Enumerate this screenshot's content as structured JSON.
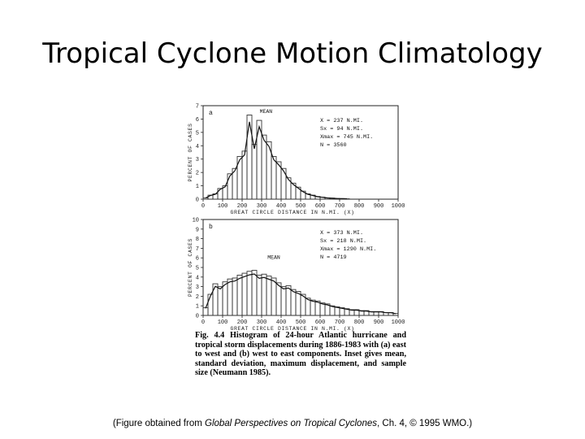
{
  "slide": {
    "title": "Tropical Cyclone Motion Climatology"
  },
  "figure": {
    "caption_label": "Fig. 4.4",
    "caption_text": "Histogram of 24-hour Atlantic hurricane and tropical storm displacements during 1886-1983 with (a) east to west and (b) west to east components. Inset gives mean, standard deviation, maximum displacement, and sample size (Neumann 1985).",
    "panels": [
      {
        "label": "a",
        "curve_label": "MEAN",
        "ylabel": "PERCENT OF CASES",
        "xlabel": "GREAT CIRCLE DISTANCE IN N.MI. (X)",
        "y_ticks": [
          "0",
          "1",
          "2",
          "3",
          "4",
          "5",
          "6",
          "7"
        ],
        "x_ticks": [
          "0",
          "100",
          "200",
          "300",
          "400",
          "500",
          "600",
          "700",
          "800",
          "900",
          "1000"
        ],
        "stats": [
          "X = 237 N.MI.",
          "Sx = 94 N.MI.",
          "Xmax = 745 N.MI.",
          "N = 3560"
        ]
      },
      {
        "label": "b",
        "curve_label": "MEAN",
        "ylabel": "PERCENT OF CASES",
        "xlabel": "GREAT CIRCLE DISTANCE IN N.MI. (X)",
        "y_ticks": [
          "0",
          "1",
          "2",
          "3",
          "4",
          "5",
          "6",
          "7",
          "8",
          "9",
          "10"
        ],
        "x_ticks": [
          "0",
          "100",
          "200",
          "300",
          "400",
          "500",
          "600",
          "700",
          "800",
          "900",
          "1000"
        ],
        "stats": [
          "X = 373 N.MI.",
          "Sx = 218 N.MI.",
          "Xmax = 1290 N.MI.",
          "N = 4719"
        ]
      }
    ]
  },
  "chart_data": [
    {
      "type": "bar",
      "title": "",
      "xlabel": "GREAT CIRCLE DISTANCE IN N.MI. (X)",
      "ylabel": "PERCENT OF CASES",
      "xlim": [
        0,
        1000
      ],
      "ylim": [
        0,
        7
      ],
      "bin_width": 25,
      "x": [
        0,
        25,
        50,
        75,
        100,
        125,
        150,
        175,
        200,
        225,
        250,
        275,
        300,
        325,
        350,
        375,
        400,
        425,
        450,
        475,
        500,
        525,
        550,
        575,
        600,
        625,
        650,
        675,
        700,
        725
      ],
      "values": [
        0.1,
        0.3,
        0.4,
        0.8,
        1.0,
        1.9,
        2.3,
        3.2,
        3.6,
        6.3,
        4.1,
        5.9,
        4.8,
        4.3,
        3.2,
        2.8,
        2.3,
        1.6,
        1.2,
        0.9,
        0.6,
        0.4,
        0.3,
        0.2,
        0.15,
        0.1,
        0.08,
        0.05,
        0.04,
        0.03
      ]
    },
    {
      "type": "bar",
      "title": "",
      "xlabel": "GREAT CIRCLE DISTANCE IN N.MI. (X)",
      "ylabel": "PERCENT OF CASES",
      "xlim": [
        0,
        1000
      ],
      "ylim": [
        0,
        10
      ],
      "bin_width": 25,
      "x": [
        0,
        25,
        50,
        75,
        100,
        125,
        150,
        175,
        200,
        225,
        250,
        275,
        300,
        325,
        350,
        375,
        400,
        425,
        450,
        475,
        500,
        525,
        550,
        575,
        600,
        625,
        650,
        675,
        700,
        725,
        750,
        775,
        800,
        825,
        850,
        875,
        900,
        925,
        950,
        975
      ],
      "values": [
        0.8,
        2.2,
        3.3,
        3.0,
        3.5,
        3.8,
        3.9,
        4.2,
        4.4,
        4.6,
        4.7,
        4.2,
        4.3,
        4.1,
        3.9,
        3.4,
        3.0,
        3.1,
        2.7,
        2.5,
        2.2,
        1.8,
        1.6,
        1.5,
        1.3,
        1.2,
        1.0,
        0.9,
        0.8,
        0.7,
        0.6,
        0.6,
        0.5,
        0.5,
        0.4,
        0.4,
        0.4,
        0.3,
        0.3,
        0.2
      ]
    }
  ],
  "footer": {
    "prefix": "(Figure obtained from ",
    "book_title": "Global Perspectives on Tropical Cyclones",
    "suffix": ", Ch. 4, © 1995 WMO.)"
  }
}
